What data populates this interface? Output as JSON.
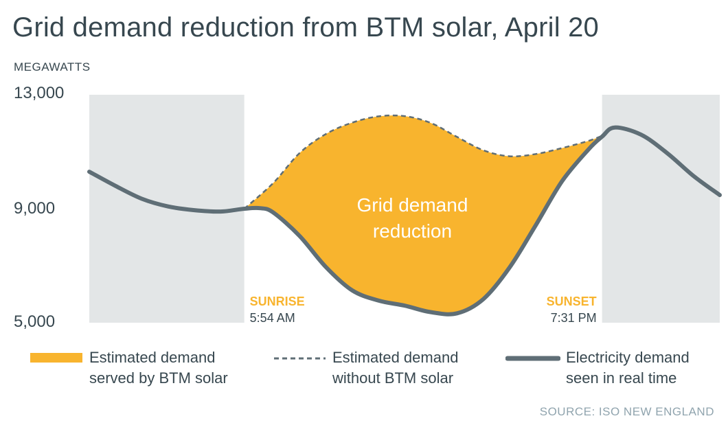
{
  "chart_data": {
    "type": "area",
    "title": "Grid demand reduction from BTM solar, April 20",
    "ylabel": "MEGAWATTS",
    "ylim": [
      5000,
      13000
    ],
    "yticks": [
      "13,000",
      "9,000",
      "5,000"
    ],
    "ytick_values": [
      13000,
      9000,
      5000
    ],
    "xlim": [
      0,
      24
    ],
    "night_shading": [
      [
        0,
        5.9
      ],
      [
        19.52,
        24
      ]
    ],
    "area_label": "Grid demand reduction",
    "sunrise": {
      "label": "SUNRISE",
      "time": "5:54 AM",
      "x": 5.9
    },
    "sunset": {
      "label": "SUNSET",
      "time": "7:31 PM",
      "x": 19.52
    },
    "series": [
      {
        "name": "Estimated demand without BTM solar",
        "style": "dashed",
        "x": [
          5.9,
          7,
          8,
          9,
          10,
          11,
          12,
          13,
          14,
          15,
          16,
          17,
          18,
          19,
          19.52
        ],
        "values": [
          9000,
          9900,
          10950,
          11620,
          12020,
          12240,
          12250,
          12010,
          11520,
          11050,
          10840,
          10920,
          11130,
          11380,
          11560
        ]
      },
      {
        "name": "Electricity demand seen in real time",
        "style": "solid",
        "x": [
          0,
          1,
          2,
          3,
          4,
          5,
          5.9,
          6.5,
          7,
          8,
          9,
          10,
          11,
          12,
          13,
          14,
          15,
          16,
          17,
          18,
          19,
          19.52,
          20,
          21,
          22,
          23,
          24
        ],
        "values": [
          10300,
          9800,
          9350,
          9080,
          8950,
          8900,
          9000,
          9020,
          8870,
          8050,
          6960,
          6140,
          5780,
          5600,
          5370,
          5330,
          5830,
          6940,
          8430,
          9970,
          11080,
          11530,
          11850,
          11600,
          10950,
          10150,
          9480
        ]
      }
    ],
    "legend": [
      {
        "line1": "Estimated demand",
        "line2": "served by BTM solar"
      },
      {
        "line1": "Estimated demand",
        "line2": "without BTM solar"
      },
      {
        "line1": "Electricity demand",
        "line2": "seen in real time"
      }
    ],
    "source": "SOURCE: ISO NEW ENGLAND",
    "colors": {
      "area": "#f8b42e",
      "line": "#5f6e76",
      "night": "#e3e6e7",
      "accent": "#f8b42e",
      "text": "#37474f",
      "source": "#90a4ae"
    }
  }
}
